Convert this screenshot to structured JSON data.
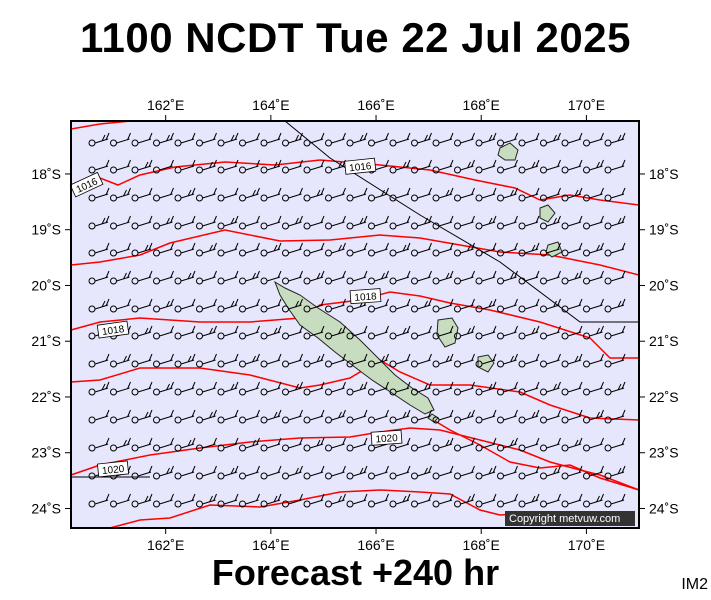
{
  "header": {
    "title": "1100 NCDT Tue 22 Jul 2025"
  },
  "footer": {
    "subtitle": "Forecast +240 hr",
    "corner_tag": "IM2"
  },
  "map": {
    "lon_range": [
      160.2,
      171.0
    ],
    "lat_range": [
      -24.35,
      -17.05
    ],
    "ocean_color": "#e6e6fc",
    "isobar_color": "#ff0000",
    "land_color": "#c8dcc0",
    "lon_ticks": [
      {
        "value": 162,
        "label": "162˚E"
      },
      {
        "value": 164,
        "label": "164˚E"
      },
      {
        "value": 166,
        "label": "166˚E"
      },
      {
        "value": 168,
        "label": "168˚E"
      },
      {
        "value": 170,
        "label": "170˚E"
      }
    ],
    "lat_ticks": [
      {
        "value": -18,
        "label": "18˚S"
      },
      {
        "value": -19,
        "label": "19˚S"
      },
      {
        "value": -20,
        "label": "20˚S"
      },
      {
        "value": -21,
        "label": "21˚S"
      },
      {
        "value": -22,
        "label": "22˚S"
      },
      {
        "value": -23,
        "label": "23˚S"
      },
      {
        "value": -24,
        "label": "24˚S"
      }
    ],
    "isobar_labels": [
      {
        "text": "1016",
        "lon": 165.7,
        "lat": -17.87,
        "angle": -6
      },
      {
        "text": "1016",
        "lon": 160.5,
        "lat": -18.2,
        "angle": -25
      },
      {
        "text": "1018",
        "lon": 165.8,
        "lat": -20.2,
        "angle": -4
      },
      {
        "text": "1018",
        "lon": 161.0,
        "lat": -20.8,
        "angle": -8
      },
      {
        "text": "1020",
        "lon": 166.2,
        "lat": -22.74,
        "angle": -4
      },
      {
        "text": "1020",
        "lon": 161.0,
        "lat": -23.3,
        "angle": -6
      }
    ],
    "copyright": "Copyright metvuw.com"
  }
}
